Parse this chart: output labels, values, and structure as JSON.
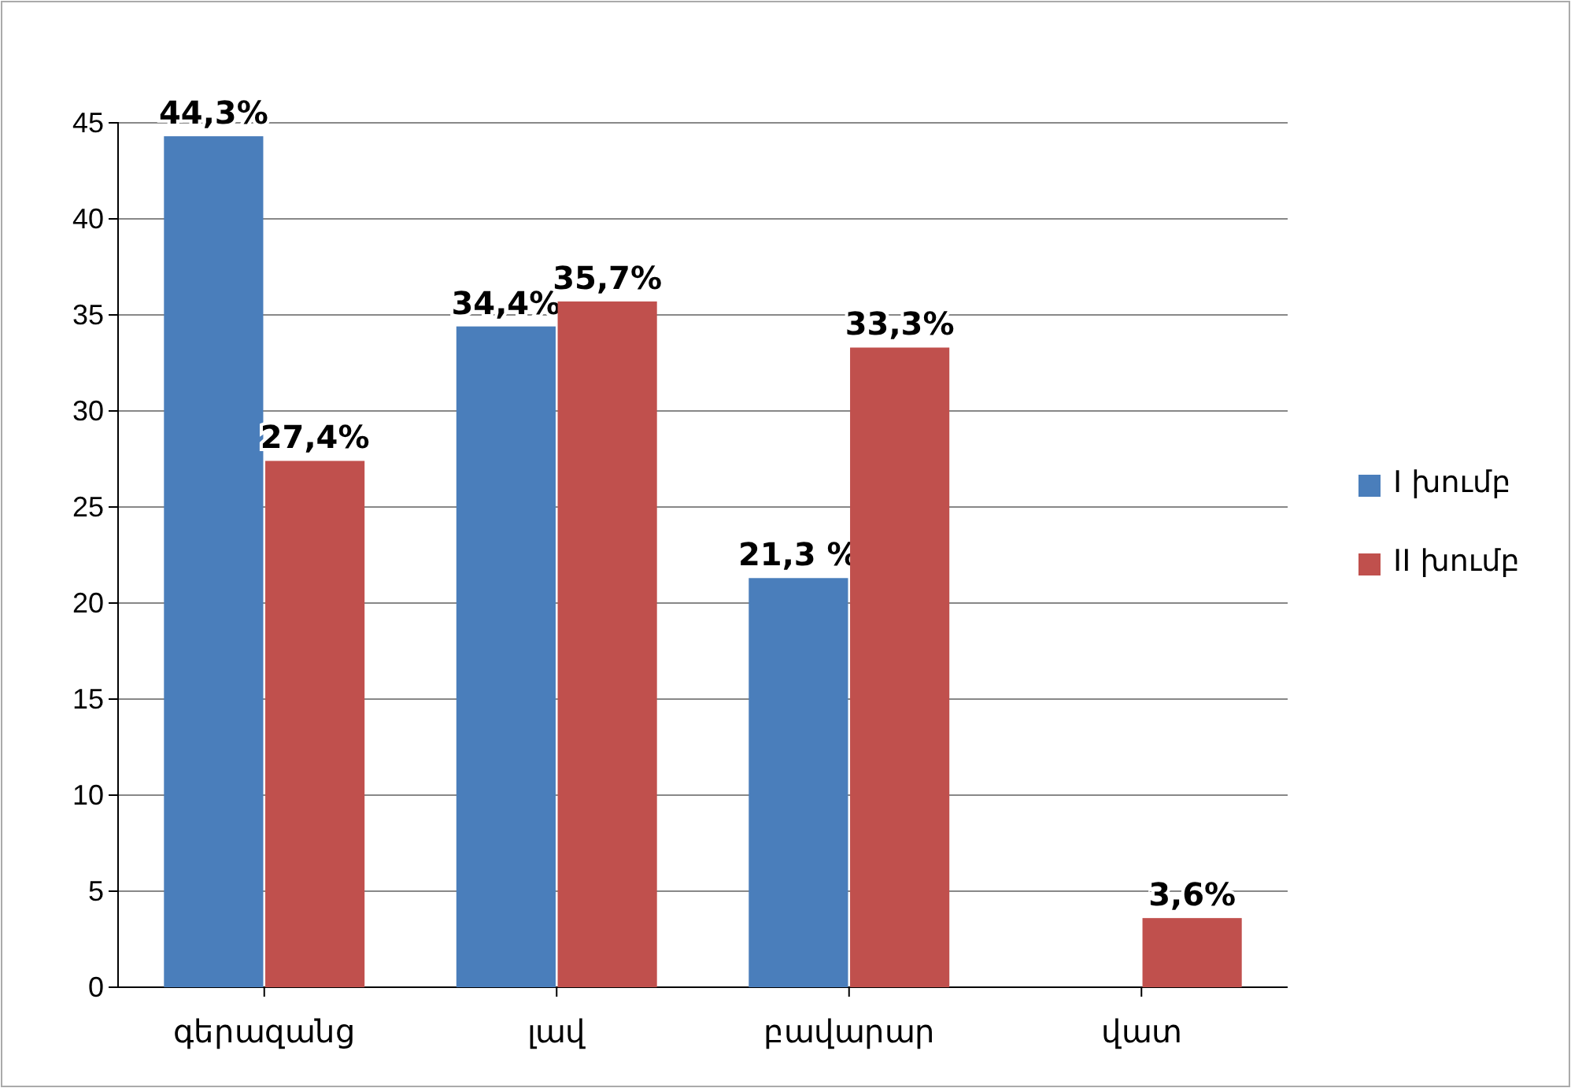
{
  "chart_data": {
    "type": "bar",
    "categories": [
      "գերազանց",
      "լավ",
      "բավարար",
      "վատ"
    ],
    "series": [
      {
        "name": "I խումբ",
        "color": "#4a7ebb",
        "values": [
          44.3,
          34.4,
          21.3,
          null
        ],
        "value_labels": [
          "44,3%",
          "34,4%",
          "21,3 %",
          null
        ]
      },
      {
        "name": "II խումբ",
        "color": "#c0504d",
        "values": [
          27.4,
          35.7,
          33.3,
          3.6
        ],
        "value_labels": [
          "27,4%",
          "35,7%",
          "33,3%",
          "3,6%"
        ]
      }
    ],
    "ylim": [
      0,
      45
    ],
    "yticks": [
      0,
      5,
      10,
      15,
      20,
      25,
      30,
      35,
      40,
      45
    ],
    "grid": "y",
    "legend": "right"
  }
}
